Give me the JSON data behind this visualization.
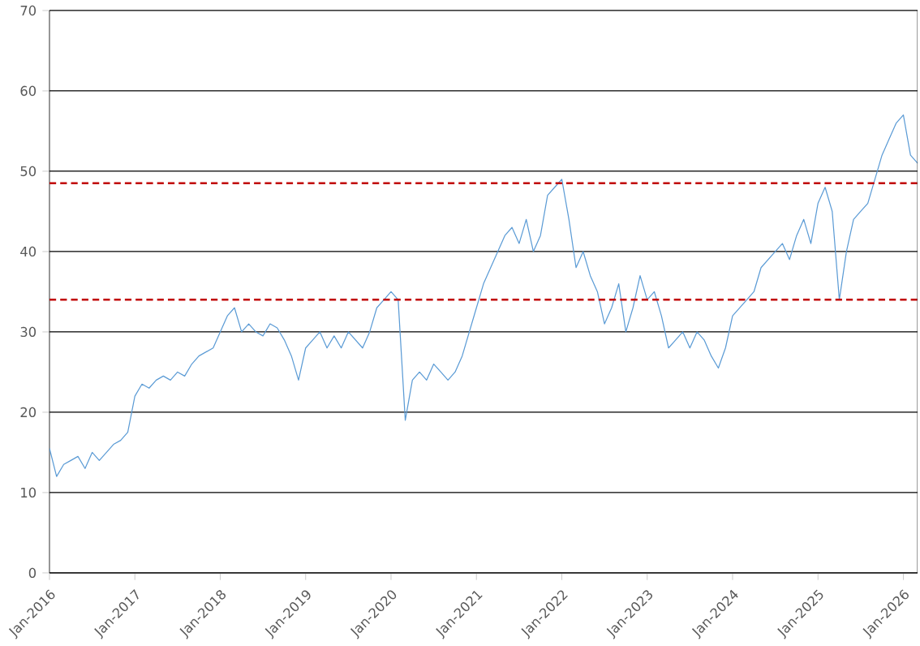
{
  "chart_data": {
    "type": "line",
    "x": [
      "2016-01",
      "2016-02",
      "2016-03",
      "2016-04",
      "2016-05",
      "2016-06",
      "2016-07",
      "2016-08",
      "2016-09",
      "2016-10",
      "2016-11",
      "2016-12",
      "2017-01",
      "2017-02",
      "2017-03",
      "2017-04",
      "2017-05",
      "2017-06",
      "2017-07",
      "2017-08",
      "2017-09",
      "2017-10",
      "2017-11",
      "2017-12",
      "2018-01",
      "2018-02",
      "2018-03",
      "2018-04",
      "2018-05",
      "2018-06",
      "2018-07",
      "2018-08",
      "2018-09",
      "2018-10",
      "2018-11",
      "2018-12",
      "2019-01",
      "2019-02",
      "2019-03",
      "2019-04",
      "2019-05",
      "2019-06",
      "2019-07",
      "2019-08",
      "2019-09",
      "2019-10",
      "2019-11",
      "2019-12",
      "2020-01",
      "2020-02",
      "2020-03",
      "2020-04",
      "2020-05",
      "2020-06",
      "2020-07",
      "2020-08",
      "2020-09",
      "2020-10",
      "2020-11",
      "2020-12",
      "2021-01",
      "2021-02",
      "2021-03",
      "2021-04",
      "2021-05",
      "2021-06",
      "2021-07",
      "2021-08",
      "2021-09",
      "2021-10",
      "2021-11",
      "2021-12",
      "2022-01",
      "2022-02",
      "2022-03",
      "2022-04",
      "2022-05",
      "2022-06",
      "2022-07",
      "2022-08",
      "2022-09",
      "2022-10",
      "2022-11",
      "2022-12",
      "2023-01",
      "2023-02",
      "2023-03",
      "2023-04",
      "2023-05",
      "2023-06",
      "2023-07",
      "2023-08",
      "2023-09",
      "2023-10",
      "2023-11",
      "2023-12",
      "2024-01",
      "2024-02",
      "2024-03",
      "2024-04",
      "2024-05",
      "2024-06",
      "2024-07",
      "2024-08",
      "2024-09",
      "2024-10",
      "2024-11",
      "2024-12",
      "2025-01",
      "2025-02",
      "2025-03",
      "2025-04",
      "2025-05",
      "2025-06",
      "2025-07",
      "2025-08",
      "2025-09",
      "2025-10",
      "2025-11",
      "2025-12",
      "2026-01",
      "2026-02",
      "2026-03"
    ],
    "series": [
      {
        "color": "#5b9bd5",
        "values": [
          15.5,
          12,
          13.5,
          14,
          14.5,
          13,
          15,
          14,
          15,
          16,
          16.5,
          17.5,
          22,
          23.5,
          23,
          24,
          24.5,
          24,
          25,
          24.5,
          26,
          27,
          27.5,
          28,
          30,
          32,
          33,
          30,
          31,
          30,
          29.5,
          31,
          30.5,
          29,
          27,
          24,
          28,
          29,
          30,
          28,
          29.5,
          28,
          30,
          29,
          28,
          30,
          33,
          34,
          35,
          34,
          19,
          24,
          25,
          24,
          26,
          25,
          24,
          25,
          27,
          30,
          33,
          36,
          38,
          40,
          42,
          43,
          41,
          44,
          40,
          42,
          47,
          48,
          49,
          44,
          38,
          40,
          37,
          35,
          31,
          33,
          36,
          30,
          33,
          37,
          34,
          35,
          32,
          28,
          29,
          30,
          28,
          30,
          29,
          27,
          25.5,
          28,
          32,
          33,
          34,
          35,
          38,
          39,
          40,
          41,
          39,
          42,
          44,
          41,
          46,
          48,
          45,
          34,
          40,
          44,
          45,
          46,
          49,
          52,
          54,
          56,
          57,
          52,
          51
        ]
      }
    ],
    "xlim": [
      "2016-01",
      "2026-03"
    ],
    "xticks": [
      {
        "value": "2016-01",
        "label": "Jan-2016"
      },
      {
        "value": "2017-01",
        "label": "Jan-2017"
      },
      {
        "value": "2018-01",
        "label": "Jan-2018"
      },
      {
        "value": "2019-01",
        "label": "Jan-2019"
      },
      {
        "value": "2020-01",
        "label": "Jan-2020"
      },
      {
        "value": "2021-01",
        "label": "Jan-2021"
      },
      {
        "value": "2022-01",
        "label": "Jan-2022"
      },
      {
        "value": "2023-01",
        "label": "Jan-2023"
      },
      {
        "value": "2024-01",
        "label": "Jan-2024"
      },
      {
        "value": "2025-01",
        "label": "Jan-2025"
      },
      {
        "value": "2026-01",
        "label": "Jan-2026"
      }
    ],
    "ylim": [
      0,
      70
    ],
    "yticks": [
      0,
      10,
      20,
      30,
      40,
      50,
      60,
      70
    ],
    "grid": "y",
    "ref_lines": [
      {
        "axis": "y",
        "value": 48.5,
        "color": "#c00000",
        "line_style": "dashed"
      },
      {
        "axis": "y",
        "value": 34,
        "color": "#c00000",
        "line_style": "dashed"
      }
    ]
  }
}
